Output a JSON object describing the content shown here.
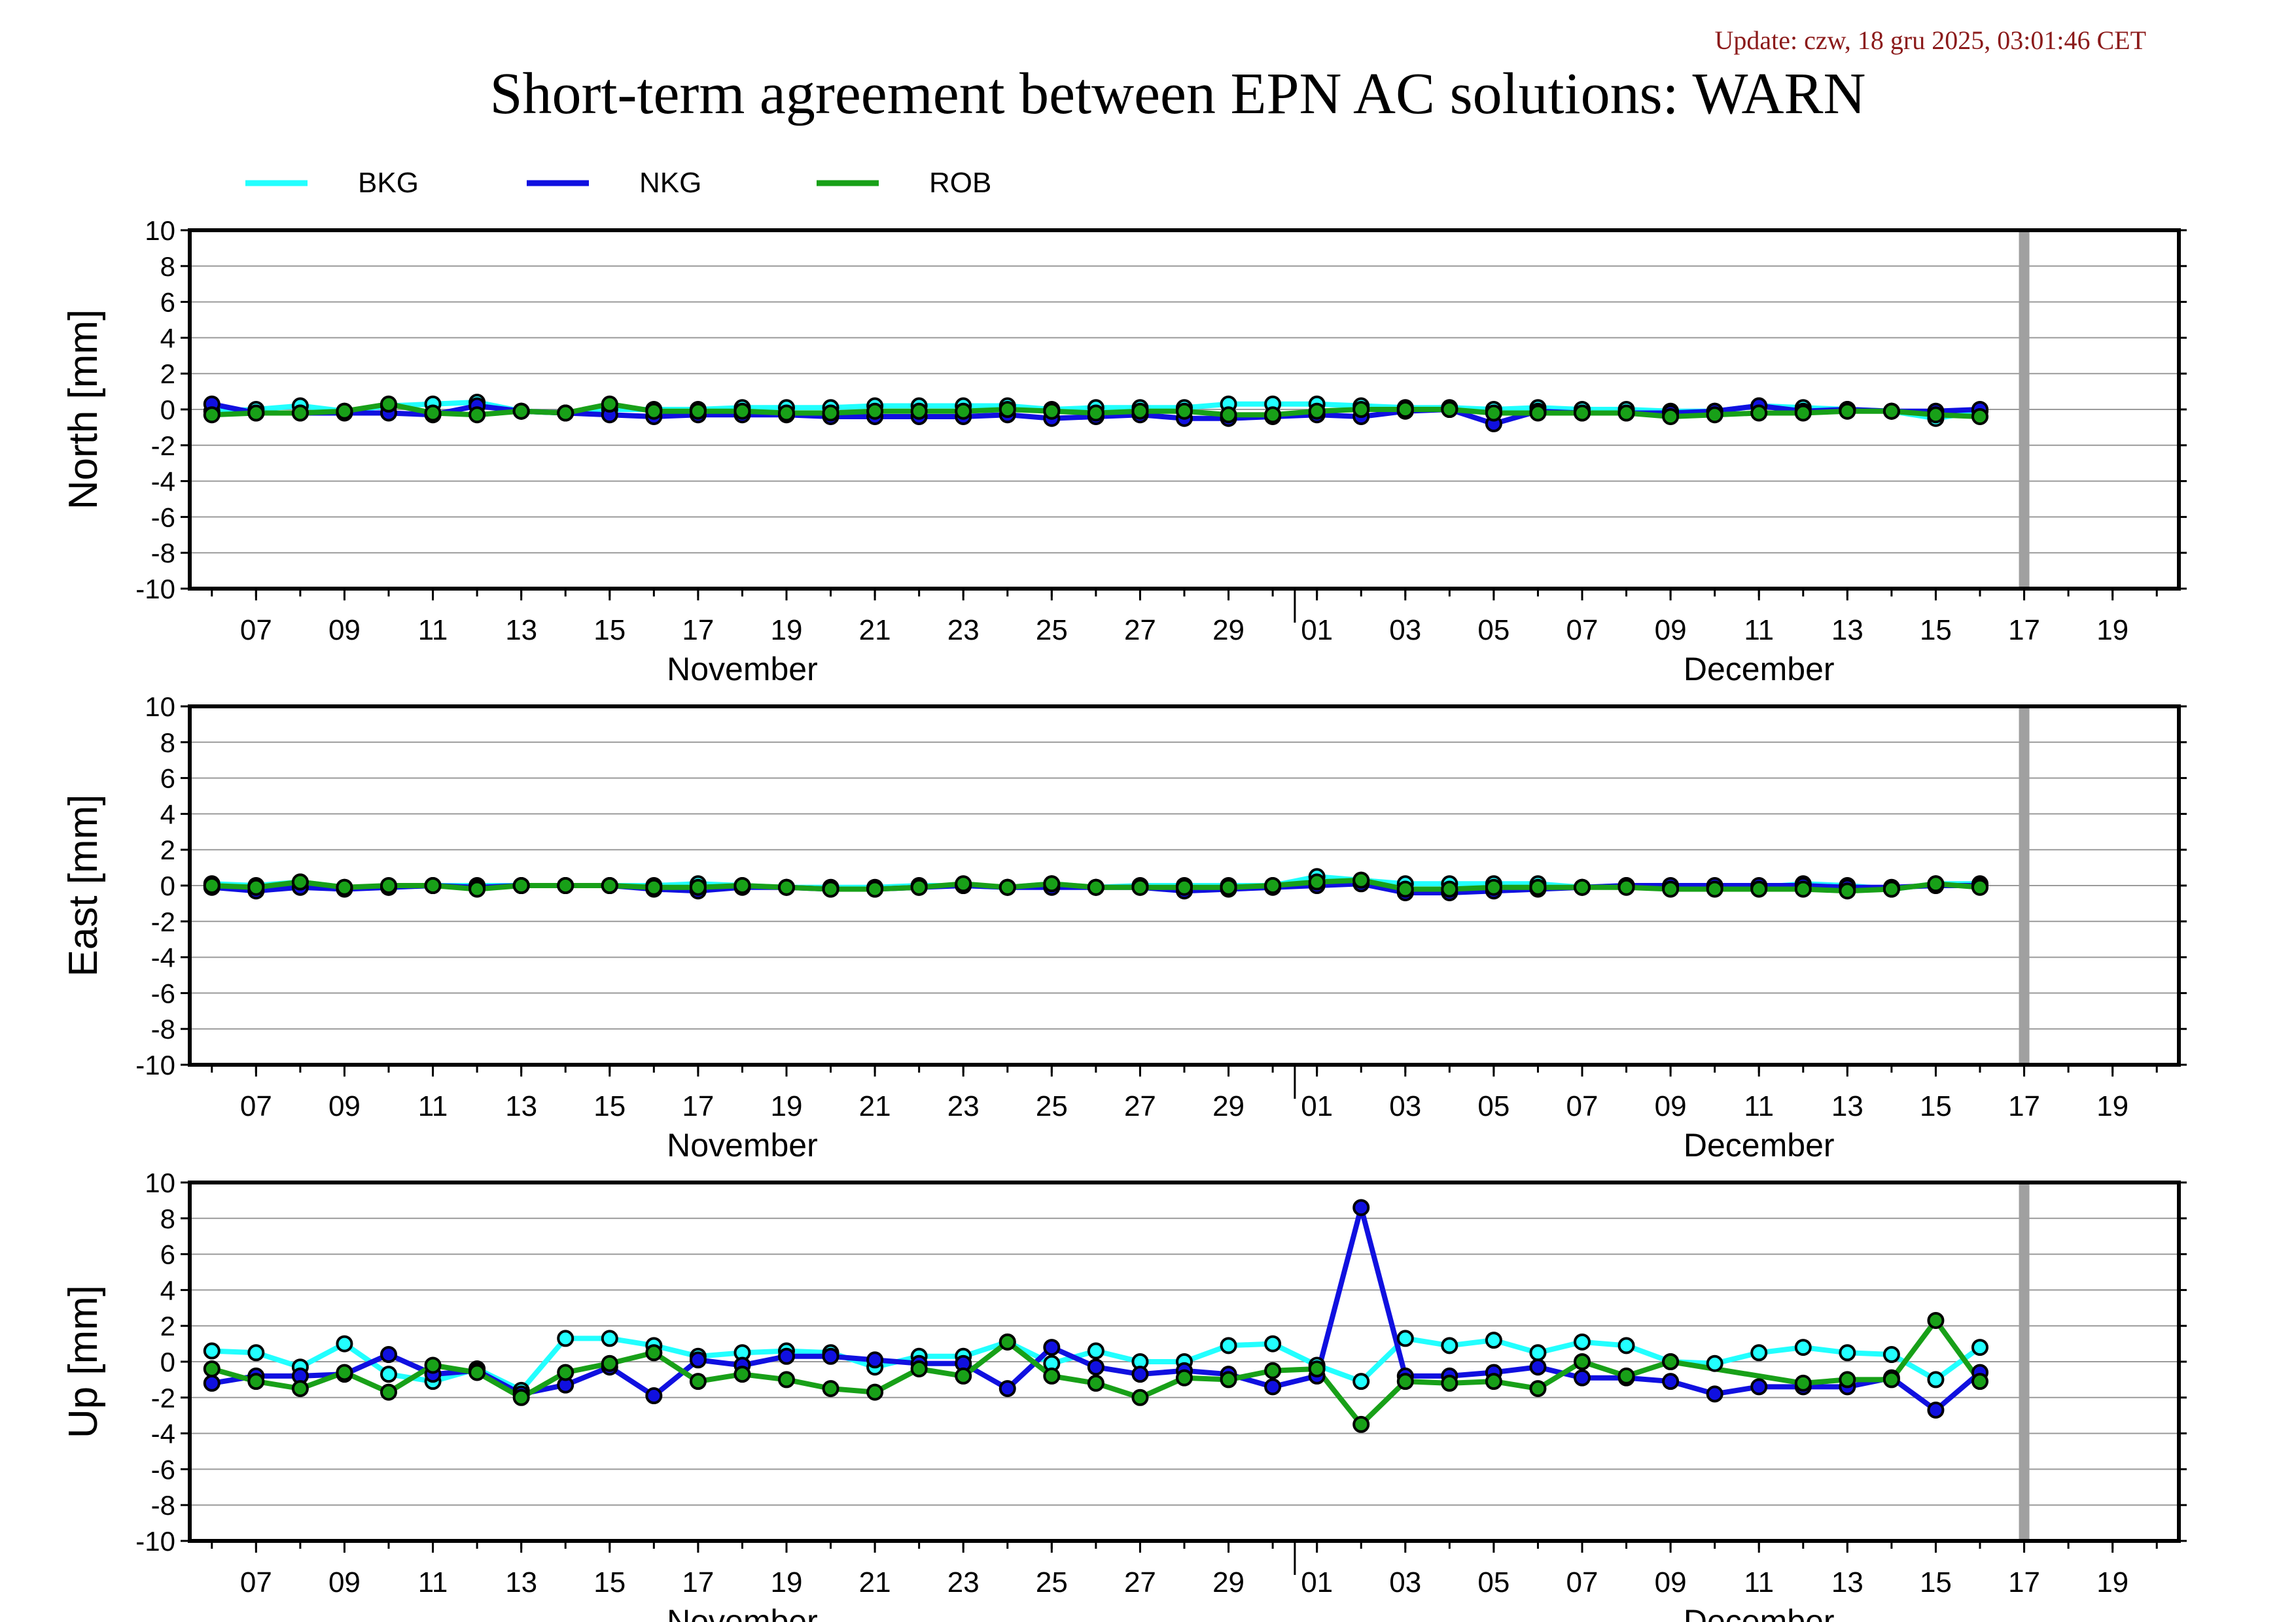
{
  "header": {
    "update": "Update: czw, 18 gru 2025, 03:01:46 CET",
    "title": "Short-term agreement between EPN AC solutions: WARN"
  },
  "colors": {
    "BKG": "#22ffff",
    "NKG": "#1010e0",
    "ROB": "#18a018",
    "update_text": "#8b1a1a",
    "now_marker": "#a0a0a0"
  },
  "chart_data": {
    "type": "line",
    "legend": [
      "BKG",
      "NKG",
      "ROB"
    ],
    "legend_placement": "top-left",
    "x_tick_labels": [
      "07",
      "09",
      "11",
      "13",
      "15",
      "17",
      "19",
      "21",
      "23",
      "25",
      "27",
      "29",
      "01",
      "03",
      "05",
      "07",
      "09",
      "11",
      "13",
      "15",
      "17",
      "19"
    ],
    "x_tick_dates": [
      "2025-11-07",
      "2025-11-09",
      "2025-11-11",
      "2025-11-13",
      "2025-11-15",
      "2025-11-17",
      "2025-11-19",
      "2025-11-21",
      "2025-11-23",
      "2025-11-25",
      "2025-11-27",
      "2025-11-29",
      "2025-12-01",
      "2025-12-03",
      "2025-12-05",
      "2025-12-07",
      "2025-12-09",
      "2025-12-11",
      "2025-12-13",
      "2025-12-15",
      "2025-12-17",
      "2025-12-19"
    ],
    "month_labels": [
      "November",
      "December"
    ],
    "month_label_dates": [
      "2025-11-18",
      "2025-12-11"
    ],
    "month_separator_date": "2025-11-30T12:00",
    "xlim": [
      "2025-11-05T12:00",
      "2025-12-20T12:00"
    ],
    "current_date_marker": "2025-12-17",
    "x_dates": [
      "2025-11-06",
      "2025-11-07",
      "2025-11-08",
      "2025-11-09",
      "2025-11-10",
      "2025-11-11",
      "2025-11-12",
      "2025-11-13",
      "2025-11-14",
      "2025-11-15",
      "2025-11-16",
      "2025-11-17",
      "2025-11-18",
      "2025-11-19",
      "2025-11-20",
      "2025-11-21",
      "2025-11-22",
      "2025-11-23",
      "2025-11-24",
      "2025-11-25",
      "2025-11-26",
      "2025-11-27",
      "2025-11-28",
      "2025-11-29",
      "2025-11-30",
      "2025-12-01",
      "2025-12-02",
      "2025-12-03",
      "2025-12-04",
      "2025-12-05",
      "2025-12-06",
      "2025-12-07",
      "2025-12-08",
      "2025-12-09",
      "2025-12-10",
      "2025-12-11",
      "2025-12-12",
      "2025-12-13",
      "2025-12-14",
      "2025-12-15",
      "2025-12-16"
    ],
    "panels": [
      {
        "ylabel": "North [mm]",
        "ylim": [
          -10,
          10
        ],
        "yticks": [
          10,
          8,
          6,
          4,
          2,
          0,
          -2,
          -4,
          -6,
          -8,
          -10
        ],
        "series": [
          {
            "name": "BKG",
            "values": [
              -0.1,
              0.0,
              0.2,
              -0.1,
              0.2,
              0.3,
              0.4,
              -0.1,
              -0.2,
              0.0,
              0.0,
              0.0,
              0.1,
              0.1,
              0.1,
              0.2,
              0.2,
              0.2,
              0.2,
              0.0,
              0.1,
              0.1,
              0.1,
              0.3,
              0.3,
              0.3,
              0.2,
              0.1,
              0.1,
              0.0,
              0.1,
              0.0,
              0.0,
              -0.1,
              -0.1,
              0.2,
              0.1,
              0.0,
              -0.1,
              -0.5,
              -0.1
            ]
          },
          {
            "name": "NKG",
            "values": [
              0.3,
              -0.2,
              -0.2,
              -0.2,
              -0.2,
              -0.3,
              0.2,
              -0.1,
              -0.2,
              -0.3,
              -0.4,
              -0.3,
              -0.3,
              -0.3,
              -0.4,
              -0.4,
              -0.4,
              -0.4,
              -0.3,
              -0.5,
              -0.4,
              -0.3,
              -0.5,
              -0.5,
              -0.4,
              -0.3,
              -0.4,
              -0.1,
              0.0,
              -0.8,
              -0.1,
              -0.2,
              -0.2,
              -0.2,
              -0.1,
              0.2,
              -0.1,
              0.0,
              -0.1,
              -0.1,
              0.0
            ]
          },
          {
            "name": "ROB",
            "values": [
              -0.3,
              -0.2,
              -0.2,
              -0.1,
              0.3,
              -0.2,
              -0.3,
              -0.1,
              -0.2,
              0.3,
              -0.1,
              -0.1,
              -0.1,
              -0.2,
              -0.2,
              -0.1,
              -0.1,
              -0.1,
              0.0,
              -0.1,
              -0.2,
              -0.1,
              -0.1,
              -0.3,
              -0.3,
              -0.1,
              0.0,
              0.0,
              0.0,
              -0.2,
              -0.2,
              -0.2,
              -0.2,
              -0.4,
              -0.3,
              -0.2,
              -0.2,
              -0.1,
              -0.1,
              -0.3,
              -0.4
            ]
          }
        ]
      },
      {
        "ylabel": "East [mm]",
        "ylim": [
          -10,
          10
        ],
        "yticks": [
          10,
          8,
          6,
          4,
          2,
          0,
          -2,
          -4,
          -6,
          -8,
          -10
        ],
        "series": [
          {
            "name": "BKG",
            "values": [
              0.1,
              0.0,
              0.2,
              -0.1,
              -0.1,
              0.0,
              0.0,
              0.0,
              0.0,
              0.0,
              0.0,
              0.1,
              0.0,
              -0.1,
              -0.1,
              -0.1,
              0.0,
              0.0,
              -0.1,
              0.1,
              -0.1,
              0.0,
              0.0,
              0.0,
              0.0,
              0.5,
              0.3,
              0.1,
              0.1,
              0.1,
              0.1,
              -0.1,
              0.0,
              -0.1,
              -0.1,
              -0.1,
              0.1,
              0.0,
              -0.2,
              0.1,
              0.1
            ]
          },
          {
            "name": "NKG",
            "values": [
              -0.1,
              -0.3,
              -0.1,
              -0.2,
              -0.1,
              0.0,
              -0.1,
              0.0,
              0.0,
              0.0,
              -0.2,
              -0.3,
              -0.1,
              -0.1,
              -0.2,
              -0.2,
              -0.1,
              0.0,
              -0.1,
              -0.1,
              -0.1,
              -0.1,
              -0.3,
              -0.2,
              -0.1,
              0.0,
              0.1,
              -0.4,
              -0.4,
              -0.3,
              -0.2,
              -0.1,
              0.0,
              0.0,
              0.0,
              0.0,
              0.0,
              -0.1,
              -0.1,
              0.0,
              0.0
            ]
          },
          {
            "name": "ROB",
            "values": [
              0.0,
              -0.1,
              0.2,
              -0.1,
              0.0,
              0.0,
              -0.2,
              0.0,
              0.0,
              0.0,
              -0.1,
              -0.1,
              0.0,
              -0.1,
              -0.2,
              -0.2,
              -0.1,
              0.1,
              -0.1,
              0.1,
              -0.1,
              -0.1,
              -0.1,
              -0.1,
              0.0,
              0.2,
              0.3,
              -0.2,
              -0.2,
              -0.1,
              -0.1,
              -0.1,
              -0.1,
              -0.2,
              -0.2,
              -0.2,
              -0.2,
              -0.3,
              -0.2,
              0.1,
              -0.1
            ]
          }
        ]
      },
      {
        "ylabel": "Up [mm]",
        "ylim": [
          -10,
          10
        ],
        "yticks": [
          10,
          8,
          6,
          4,
          2,
          0,
          -2,
          -4,
          -6,
          -8,
          -10
        ],
        "series": [
          {
            "name": "BKG",
            "values": [
              0.6,
              0.5,
              -0.3,
              1.0,
              -0.7,
              -1.1,
              -0.4,
              -1.6,
              1.3,
              1.3,
              0.9,
              0.3,
              0.5,
              0.6,
              0.5,
              -0.3,
              0.3,
              0.3,
              1.1,
              -0.1,
              0.6,
              0.0,
              0.0,
              0.9,
              1.0,
              -0.2,
              -1.1,
              1.3,
              0.9,
              1.2,
              0.5,
              1.1,
              0.9,
              0.0,
              -0.1,
              0.5,
              0.8,
              0.5,
              0.4,
              -1.0,
              0.8
            ]
          },
          {
            "name": "NKG",
            "values": [
              -1.2,
              -0.8,
              -0.8,
              -0.7,
              0.4,
              -0.7,
              -0.5,
              -1.8,
              -1.3,
              -0.3,
              -1.9,
              0.1,
              -0.2,
              0.3,
              0.3,
              0.1,
              -0.1,
              -0.1,
              -1.5,
              0.8,
              -0.3,
              -0.7,
              -0.5,
              -0.7,
              -1.4,
              -0.8,
              8.6,
              -0.8,
              -0.8,
              -0.6,
              -0.3,
              -0.9,
              -0.9,
              -1.1,
              -1.8,
              -1.4,
              -1.4,
              -1.4,
              -0.9,
              -2.7,
              -0.6
            ]
          },
          {
            "name": "ROB",
            "values": [
              -0.4,
              -1.1,
              -1.5,
              -0.6,
              -1.7,
              -0.2,
              -0.6,
              -2.0,
              -0.6,
              -0.1,
              0.5,
              -1.1,
              -0.7,
              -1.0,
              -1.5,
              -1.7,
              -0.4,
              -0.8,
              1.1,
              -0.8,
              -1.2,
              -2.0,
              -0.9,
              -1.0,
              -0.5,
              -0.4,
              -3.5,
              -1.1,
              -1.2,
              -1.1,
              -1.5,
              0.0,
              -0.8,
              0.0,
              null,
              null,
              -1.2,
              -1.0,
              -1.0,
              2.3,
              -1.1
            ]
          }
        ]
      }
    ]
  }
}
